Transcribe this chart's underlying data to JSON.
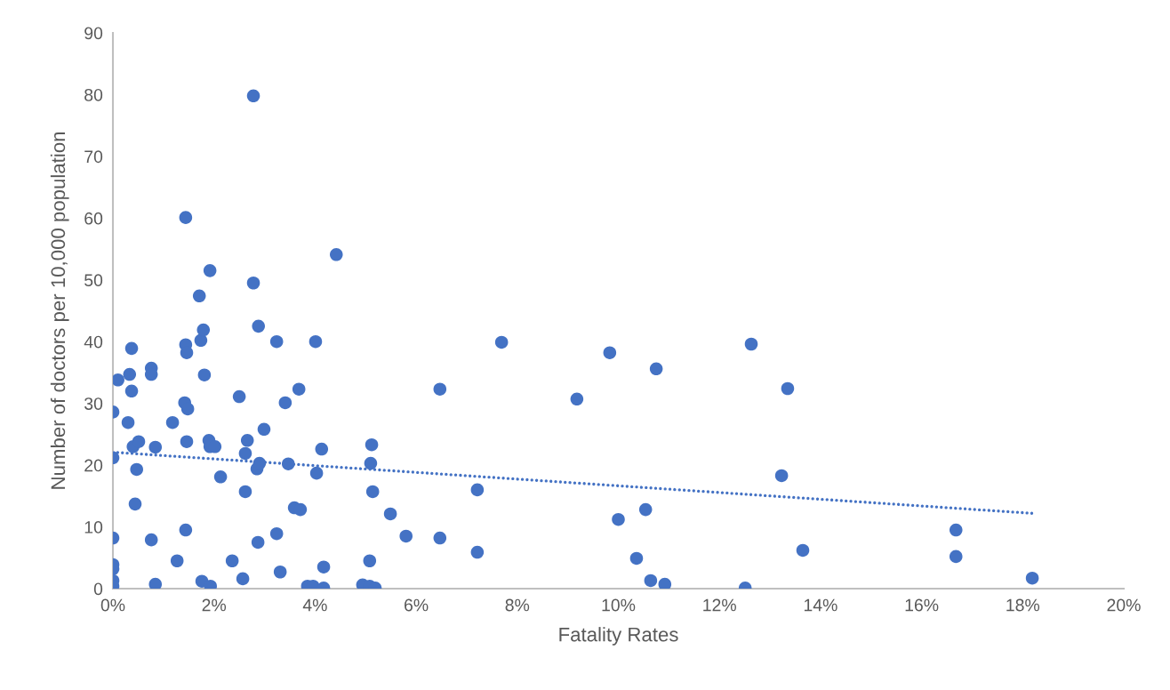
{
  "chart_data": {
    "type": "scatter",
    "xlabel": "Fatality Rates",
    "ylabel": "Number of doctors per 10,000 population",
    "xlim": [
      0,
      0.2
    ],
    "ylim": [
      0,
      90
    ],
    "xticks": [
      {
        "value": 0,
        "label": "0%"
      },
      {
        "value": 0.02,
        "label": "2%"
      },
      {
        "value": 0.04,
        "label": "4%"
      },
      {
        "value": 0.06,
        "label": "6%"
      },
      {
        "value": 0.08,
        "label": "8%"
      },
      {
        "value": 0.1,
        "label": "10%"
      },
      {
        "value": 0.12,
        "label": "12%"
      },
      {
        "value": 0.14,
        "label": "14%"
      },
      {
        "value": 0.16,
        "label": "16%"
      },
      {
        "value": 0.18,
        "label": "18%"
      },
      {
        "value": 0.2,
        "label": "20%"
      }
    ],
    "yticks": [
      0,
      10,
      20,
      30,
      40,
      50,
      60,
      70,
      80,
      90
    ],
    "grid": false,
    "marker": "circle",
    "series": [
      {
        "color": "#4472c4",
        "x": [
          0,
          0,
          0,
          0,
          0,
          0,
          0,
          0.001,
          0.003,
          0.0033,
          0.0037,
          0.0037,
          0.004,
          0.0051,
          0.0047,
          0.0044,
          0.0076,
          0.0076,
          0.0076,
          0.0084,
          0.0084,
          0.0118,
          0.0127,
          0.0142,
          0.0144,
          0.0144,
          0.0146,
          0.0148,
          0.0146,
          0.0144,
          0.0171,
          0.0174,
          0.0179,
          0.0181,
          0.0192,
          0.0176,
          0.019,
          0.0192,
          0.0202,
          0.0193,
          0.0213,
          0.0236,
          0.025,
          0.0262,
          0.0266,
          0.0262,
          0.0257,
          0.0278,
          0.0278,
          0.0288,
          0.0285,
          0.029,
          0.0287,
          0.0299,
          0.0324,
          0.0324,
          0.0331,
          0.0341,
          0.0347,
          0.0368,
          0.0359,
          0.0371,
          0.0385,
          0.0396,
          0.0401,
          0.0403,
          0.0413,
          0.0417,
          0.0417,
          0.0442,
          0.0494,
          0.0508,
          0.0512,
          0.051,
          0.0514,
          0.0508,
          0.0519,
          0.0549,
          0.058,
          0.0647,
          0.0647,
          0.0721,
          0.0721,
          0.0769,
          0.0918,
          0.0983,
          0.1,
          0.1075,
          0.1054,
          0.1036,
          0.1064,
          0.1092,
          0.1263,
          0.1335,
          0.1323,
          0.1365,
          0.1251,
          0.1668,
          0.1668,
          0.1819
        ],
        "values": [
          28.6,
          21.2,
          8.2,
          3.9,
          3.2,
          1.3,
          0.4,
          33.8,
          26.9,
          34.7,
          38.9,
          32.0,
          23.0,
          23.8,
          19.3,
          13.7,
          35.7,
          34.7,
          7.9,
          22.9,
          0.7,
          26.9,
          4.5,
          30.1,
          60.1,
          39.5,
          38.2,
          29.1,
          23.8,
          9.5,
          47.4,
          40.2,
          41.9,
          34.6,
          51.5,
          1.2,
          24.0,
          23.0,
          23.0,
          0.4,
          18.1,
          4.5,
          31.1,
          21.9,
          24.0,
          15.7,
          1.6,
          79.8,
          49.5,
          42.5,
          19.4,
          20.3,
          7.5,
          25.8,
          40.0,
          8.9,
          2.7,
          30.1,
          20.2,
          32.3,
          13.1,
          12.8,
          0.4,
          0.4,
          40.0,
          18.7,
          22.6,
          3.5,
          0.1,
          54.1,
          0.6,
          0.4,
          23.3,
          20.3,
          15.7,
          4.5,
          0.1,
          12.1,
          8.5,
          32.3,
          8.2,
          16.0,
          5.9,
          39.9,
          30.7,
          38.2,
          11.2,
          35.6,
          12.8,
          4.9,
          1.3,
          0.7,
          39.6,
          32.4,
          18.3,
          6.2,
          0.1,
          9.5,
          5.2,
          1.7
        ]
      },
      {
        "type": "line",
        "color": "#4472c4",
        "line_style": "dotted",
        "marker": "none",
        "x": [
          0,
          0.1819
        ],
        "values": [
          22.1,
          12.2
        ]
      }
    ]
  }
}
